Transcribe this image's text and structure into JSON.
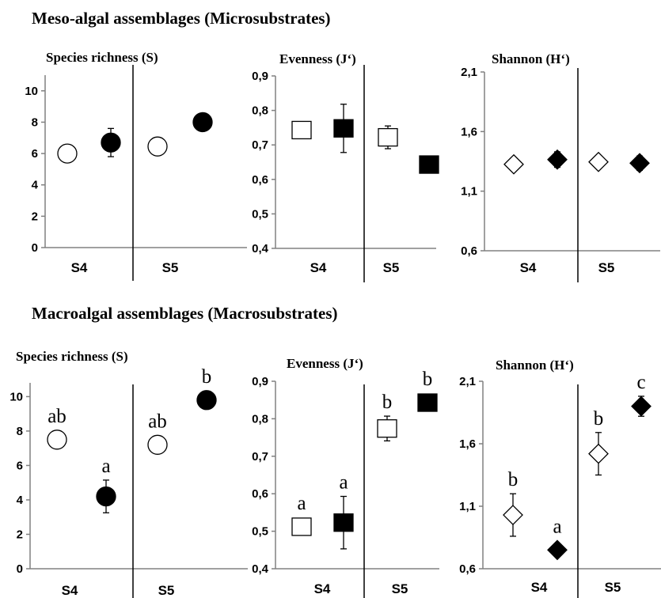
{
  "figure": {
    "sections": [
      {
        "id": "meso",
        "title": "Meso-algal assemblages (Microsubstrates)"
      },
      {
        "id": "macro",
        "title": "Macroalgal assemblages (Macrosubstrates)"
      }
    ]
  },
  "chart_data": [
    {
      "type": "scatter",
      "section": "meso",
      "marker": "circle",
      "title": "Species richness (S)",
      "categories": [
        "S4",
        "S5"
      ],
      "yticks": [
        "0",
        "2",
        "4",
        "6",
        "8",
        "10"
      ],
      "ylim": [
        0,
        11
      ],
      "points": [
        {
          "category": "S4",
          "fill": "open",
          "y": 6.0,
          "err": null
        },
        {
          "category": "S4",
          "fill": "filled",
          "y": 6.7,
          "err": 0.9
        },
        {
          "category": "S5",
          "fill": "open",
          "y": 6.45,
          "err": null
        },
        {
          "category": "S5",
          "fill": "filled",
          "y": 8.0,
          "err": null
        }
      ]
    },
    {
      "type": "scatter",
      "section": "meso",
      "marker": "square",
      "title": "Evenness (J‘)",
      "categories": [
        "S4",
        "S5"
      ],
      "yticks": [
        "0,4",
        "0,5",
        "0,6",
        "0,7",
        "0,8",
        "0,9"
      ],
      "ylim": [
        0.4,
        0.9
      ],
      "points": [
        {
          "category": "S4",
          "fill": "open",
          "y": 0.743,
          "err": null
        },
        {
          "category": "S4",
          "fill": "filled",
          "y": 0.748,
          "err": 0.07
        },
        {
          "category": "S5",
          "fill": "open",
          "y": 0.722,
          "err": 0.033
        },
        {
          "category": "S5",
          "fill": "filled",
          "y": 0.643,
          "err": null
        }
      ]
    },
    {
      "type": "scatter",
      "section": "meso",
      "marker": "diamond",
      "title": "Shannon (H‘)",
      "categories": [
        "S4",
        "S5"
      ],
      "yticks": [
        "0,6",
        "1,1",
        "1,6",
        "2,1"
      ],
      "ylim": [
        0.6,
        2.1
      ],
      "points": [
        {
          "category": "S4",
          "fill": "open",
          "y": 1.325,
          "err": null
        },
        {
          "category": "S4",
          "fill": "filled",
          "y": 1.365,
          "err": 0.065
        },
        {
          "category": "S5",
          "fill": "open",
          "y": 1.345,
          "err": null
        },
        {
          "category": "S5",
          "fill": "filled",
          "y": 1.335,
          "err": 0.06
        }
      ]
    },
    {
      "type": "scatter",
      "section": "macro",
      "marker": "circle",
      "title": "Species richness (S)",
      "categories": [
        "S4",
        "S5"
      ],
      "yticks": [
        "0",
        "2",
        "4",
        "6",
        "8",
        "10"
      ],
      "ylim": [
        0,
        10.8
      ],
      "points": [
        {
          "category": "S4",
          "fill": "open",
          "y": 7.5,
          "err": null,
          "label": "ab"
        },
        {
          "category": "S4",
          "fill": "filled",
          "y": 4.2,
          "err": 0.95,
          "label": "a"
        },
        {
          "category": "S5",
          "fill": "open",
          "y": 7.2,
          "err": null,
          "label": "ab"
        },
        {
          "category": "S5",
          "fill": "filled",
          "y": 9.8,
          "err": null,
          "label": "b"
        }
      ]
    },
    {
      "type": "scatter",
      "section": "macro",
      "marker": "square",
      "title": "Evenness (J‘)",
      "categories": [
        "S4",
        "S5"
      ],
      "yticks": [
        "0,4",
        "0,5",
        "0,6",
        "0,7",
        "0,8",
        "0,9"
      ],
      "ylim": [
        0.4,
        0.9
      ],
      "points": [
        {
          "category": "S4",
          "fill": "open",
          "y": 0.512,
          "err": null,
          "label": "a"
        },
        {
          "category": "S4",
          "fill": "filled",
          "y": 0.523,
          "err": 0.07,
          "label": "a"
        },
        {
          "category": "S5",
          "fill": "open",
          "y": 0.774,
          "err": 0.033,
          "label": "b"
        },
        {
          "category": "S5",
          "fill": "filled",
          "y": 0.843,
          "err": null,
          "label": "b"
        }
      ]
    },
    {
      "type": "scatter",
      "section": "macro",
      "marker": "diamond",
      "title": "Shannon (H‘)",
      "categories": [
        "S4",
        "S5"
      ],
      "yticks": [
        "0,6",
        "1,1",
        "1,6",
        "2,1"
      ],
      "ylim": [
        0.6,
        2.1
      ],
      "points": [
        {
          "category": "S4",
          "fill": "open",
          "y": 1.03,
          "err": 0.17,
          "label": "b"
        },
        {
          "category": "S4",
          "fill": "filled",
          "y": 0.75,
          "err": 0.045,
          "label": "a"
        },
        {
          "category": "S5",
          "fill": "open",
          "y": 1.52,
          "err": 0.17,
          "label": "b"
        },
        {
          "category": "S5",
          "fill": "filled",
          "y": 1.9,
          "err": 0.08,
          "label": "c"
        }
      ]
    }
  ]
}
